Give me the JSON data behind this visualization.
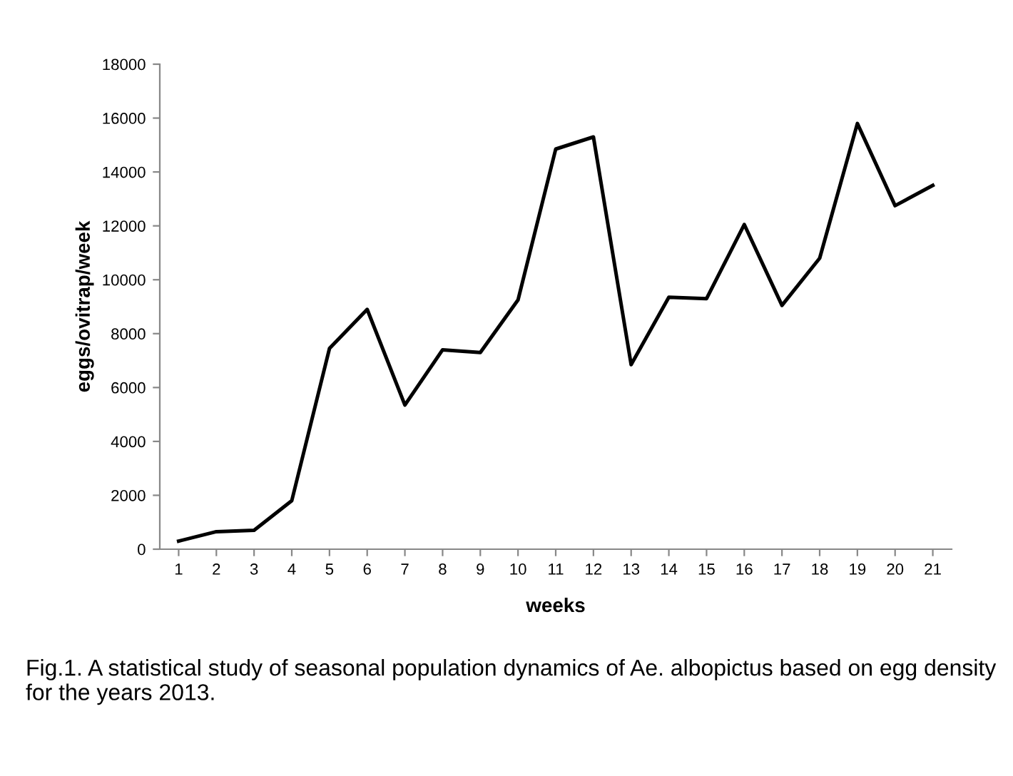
{
  "chart_data": {
    "type": "line",
    "xlabel": "weeks",
    "ylabel": "eggs/ovitrap/week",
    "categories": [
      "1",
      "2",
      "3",
      "4",
      "5",
      "6",
      "7",
      "8",
      "9",
      "10",
      "11",
      "12",
      "13",
      "14",
      "15",
      "16",
      "17",
      "18",
      "19",
      "20",
      "21"
    ],
    "series": [
      {
        "color": "#000000",
        "values": [
          300,
          650,
          700,
          1800,
          7450,
          8900,
          5350,
          7400,
          7300,
          9250,
          14850,
          15300,
          6850,
          9350,
          9300,
          12050,
          9050,
          10800,
          15800,
          12750,
          13500
        ]
      }
    ],
    "ylim": [
      0,
      18000
    ],
    "yticks": [
      0,
      2000,
      4000,
      6000,
      8000,
      10000,
      12000,
      14000,
      16000,
      18000
    ],
    "grid": false,
    "marker": "none",
    "line_style": "solid",
    "annotations": [
      "Fig.1. A statistical study of seasonal population dynamics of Ae. albopictus based on egg density for the years 2013."
    ]
  }
}
